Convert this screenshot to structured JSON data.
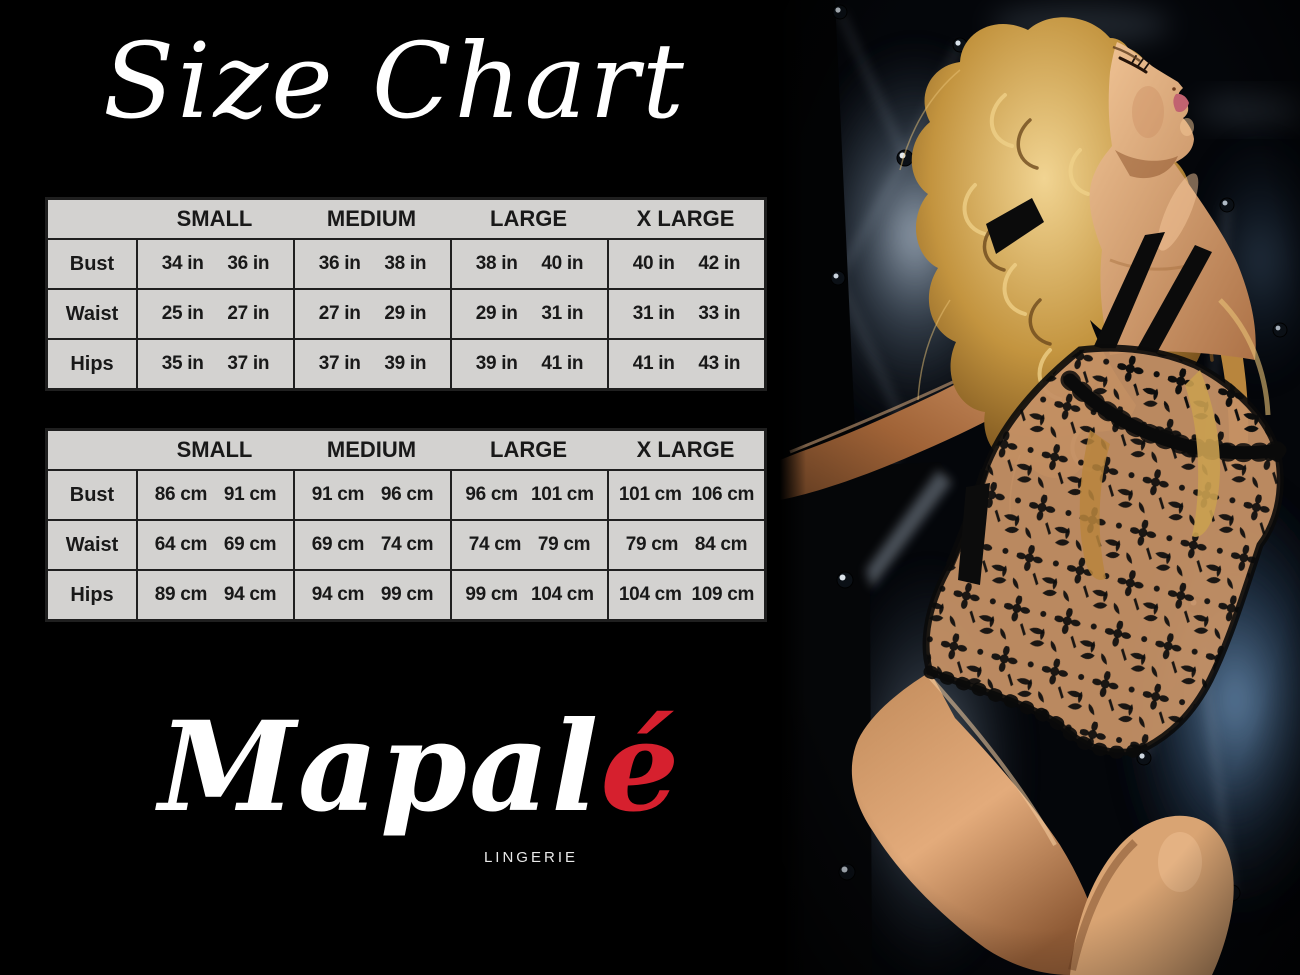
{
  "title": "Size Chart",
  "brand": {
    "name_main": "Mapal",
    "name_accent": "é",
    "tagline": "LINGERIE",
    "accent_color": "#d6202e"
  },
  "colors": {
    "page_bg": "#000000",
    "table_bg": "#d3d2d0",
    "table_border": "#1f1f1f",
    "table_text": "#191919",
    "title_color": "#ffffff",
    "tagline_color": "#e9e9e9"
  },
  "tables": [
    {
      "name": "inches",
      "sizes": [
        "SMALL",
        "MEDIUM",
        "LARGE",
        "X LARGE"
      ],
      "rows": [
        {
          "label": "Bust",
          "values": [
            [
              "34 in",
              "36 in"
            ],
            [
              "36 in",
              "38 in"
            ],
            [
              "38 in",
              "40 in"
            ],
            [
              "40 in",
              "42 in"
            ]
          ]
        },
        {
          "label": "Waist",
          "values": [
            [
              "25 in",
              "27 in"
            ],
            [
              "27 in",
              "29 in"
            ],
            [
              "29 in",
              "31 in"
            ],
            [
              "31 in",
              "33 in"
            ]
          ]
        },
        {
          "label": "Hips",
          "values": [
            [
              "35 in",
              "37 in"
            ],
            [
              "37 in",
              "39 in"
            ],
            [
              "39 in",
              "41 in"
            ],
            [
              "41 in",
              "43 in"
            ]
          ]
        }
      ]
    },
    {
      "name": "centimeters",
      "sizes": [
        "SMALL",
        "MEDIUM",
        "LARGE",
        "X LARGE"
      ],
      "rows": [
        {
          "label": "Bust",
          "values": [
            [
              "86 cm",
              "91 cm"
            ],
            [
              "91 cm",
              "96 cm"
            ],
            [
              "96 cm",
              "101 cm"
            ],
            [
              "101 cm",
              "106 cm"
            ]
          ]
        },
        {
          "label": "Waist",
          "values": [
            [
              "64 cm",
              "69 cm"
            ],
            [
              "69 cm",
              "74 cm"
            ],
            [
              "74 cm",
              "79 cm"
            ],
            [
              "79 cm",
              "84 cm"
            ]
          ]
        },
        {
          "label": "Hips",
          "values": [
            [
              "89 cm",
              "94 cm"
            ],
            [
              "94 cm",
              "99 cm"
            ],
            [
              "99 cm",
              "104 cm"
            ],
            [
              "104 cm",
              "109 cm"
            ]
          ]
        }
      ]
    }
  ],
  "photo": {
    "alt": "Blonde model in a black floral lace bodysuit reclining against dark blue tufted upholstery"
  }
}
